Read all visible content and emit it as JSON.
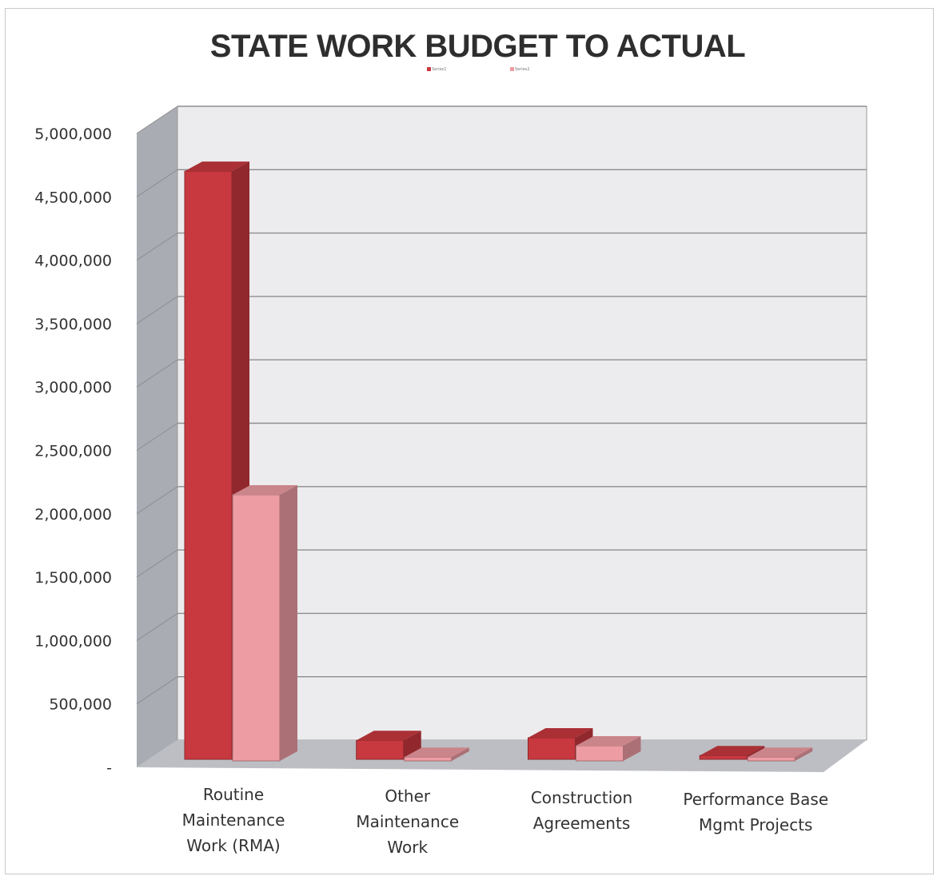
{
  "chart_data": {
    "type": "bar",
    "title": "STATE WORK BUDGET TO ACTUAL",
    "xlabel": "",
    "ylabel": "",
    "ylim": [
      0,
      5000000
    ],
    "y_ticks": [
      "-",
      "500,000",
      "1,000,000",
      "1,500,000",
      "2,000,000",
      "2,500,000",
      "3,000,000",
      "3,500,000",
      "4,000,000",
      "4,500,000",
      "5,000,000"
    ],
    "categories": [
      [
        "Routine",
        "Maintenance",
        "Work (RMA)"
      ],
      [
        "Other",
        "Maintenance",
        "Work"
      ],
      [
        "Construction",
        "Agreements"
      ],
      [
        "Performance Base",
        "Mgmt Projects"
      ]
    ],
    "series": [
      {
        "name": "Series1",
        "color": "#c8383f",
        "values": [
          4640000,
          150000,
          170000,
          30000
        ]
      },
      {
        "name": "Series2",
        "color": "#ee9ca4",
        "values": [
          2100000,
          30000,
          120000,
          30000
        ]
      }
    ],
    "grid": true,
    "three_d": true,
    "legend_position": "top"
  }
}
